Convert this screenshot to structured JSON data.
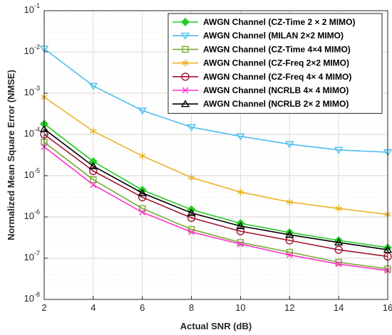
{
  "chart_data": {
    "type": "line",
    "title": "",
    "xlabel": "Actual SNR (dB)",
    "ylabel": "Normalized Mean Square Error (NMSE)",
    "xlim": [
      2,
      16
    ],
    "ylim": [
      1e-08,
      0.1
    ],
    "yscale": "log",
    "grid": true,
    "legend_position": "top-right",
    "x": [
      2,
      4,
      6,
      8,
      10,
      12,
      14,
      16
    ],
    "x_ticks": [
      "2",
      "4",
      "6",
      "8",
      "10",
      "12",
      "14",
      "16"
    ],
    "y_ticks": [
      {
        "base": "10",
        "exp": "-8"
      },
      {
        "base": "10",
        "exp": "-7"
      },
      {
        "base": "10",
        "exp": "-6"
      },
      {
        "base": "10",
        "exp": "-5"
      },
      {
        "base": "10",
        "exp": "-4"
      },
      {
        "base": "10",
        "exp": "-3"
      },
      {
        "base": "10",
        "exp": "-2"
      },
      {
        "base": "10",
        "exp": "-1"
      }
    ],
    "series": [
      {
        "name": "AWGN Channel (CZ-Time 2 × 2 MIMO)",
        "color": "#22cc22",
        "marker": "diamond",
        "values": [
          0.00018,
          2.2e-05,
          4.5e-06,
          1.5e-06,
          7e-07,
          4.2e-07,
          2.7e-07,
          1.8e-07
        ]
      },
      {
        "name": "AWGN Channel (MILAN 2×2 MIMO)",
        "color": "#4dbeee",
        "marker": "triangle-down",
        "values": [
          0.012,
          0.0015,
          0.00038,
          0.00015,
          9e-05,
          5.8e-05,
          4.2e-05,
          3.7e-05
        ]
      },
      {
        "name": "AWGN Channel (CZ-Time 4×4 MIMO)",
        "color": "#77ac30",
        "marker": "square",
        "values": [
          6.5e-05,
          8e-06,
          1.6e-06,
          5e-07,
          2.4e-07,
          1.4e-07,
          8e-08,
          5.5e-08
        ]
      },
      {
        "name": "AWGN Channel (CZ-Freq 2×2 MIMO)",
        "color": "#edb120",
        "marker": "asterisk",
        "values": [
          0.0008,
          0.00012,
          3e-05,
          9e-06,
          4e-06,
          2.3e-06,
          1.6e-06,
          1.15e-06
        ]
      },
      {
        "name": "AWGN Channel (CZ-Freq 4× 4 MIMO)",
        "color": "#a2142f",
        "marker": "circle",
        "values": [
          0.0001,
          1.3e-05,
          3e-06,
          9.5e-07,
          4.5e-07,
          2.7e-07,
          1.6e-07,
          1.1e-07
        ]
      },
      {
        "name": "AWGN Channel (NCRLB 4× 4 MIMO)",
        "color": "#ff33cc",
        "marker": "x",
        "values": [
          5e-05,
          6e-06,
          1.3e-06,
          4.3e-07,
          2.2e-07,
          1.2e-07,
          7.2e-08,
          5e-08
        ]
      },
      {
        "name": "AWGN Channel (NCRLB 2× 2 MIMO)",
        "color": "#000000",
        "marker": "triangle-up",
        "values": [
          0.000135,
          1.7e-05,
          3.8e-06,
          1.25e-06,
          6e-07,
          3.7e-07,
          2.4e-07,
          1.6e-07
        ]
      }
    ]
  }
}
